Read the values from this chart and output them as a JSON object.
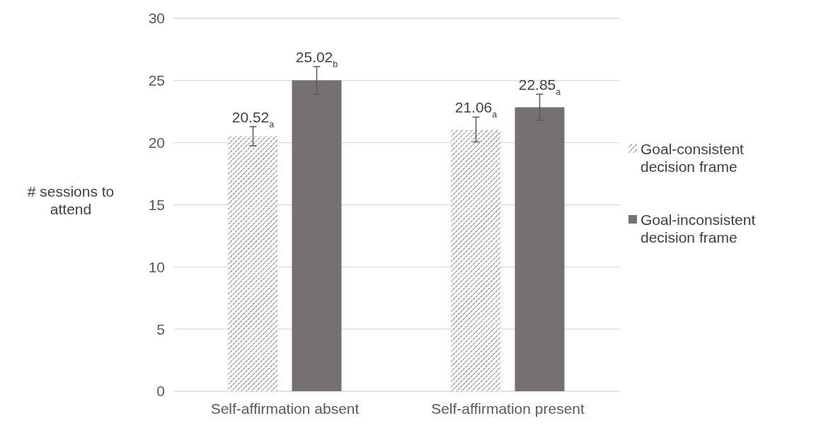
{
  "chart_data": {
    "type": "bar",
    "ylabel": "# sessions to attend",
    "categories": [
      "Self-affirmation absent",
      "Self-affirmation present"
    ],
    "series": [
      {
        "name": "Goal-consistent decision frame",
        "color": "#595959",
        "values": [
          20.52,
          21.06
        ],
        "errors": [
          0.77,
          1.0
        ],
        "value_labels": [
          "20.52$_{a}$",
          "21.06$_{a}$"
        ]
      },
      {
        "name": "Goal-inconsistent decision frame",
        "color": "#757171",
        "values": [
          25.02,
          22.85
        ],
        "errors": [
          1.1,
          1.05
        ],
        "value_labels": [
          "25.02$_{b}$",
          "22.85$_{a}$"
        ]
      }
    ],
    "ylim": [
      0,
      30
    ],
    "yticks": [
      0,
      5,
      10,
      15,
      20,
      25,
      30
    ],
    "grid": "y",
    "legend": "right"
  }
}
